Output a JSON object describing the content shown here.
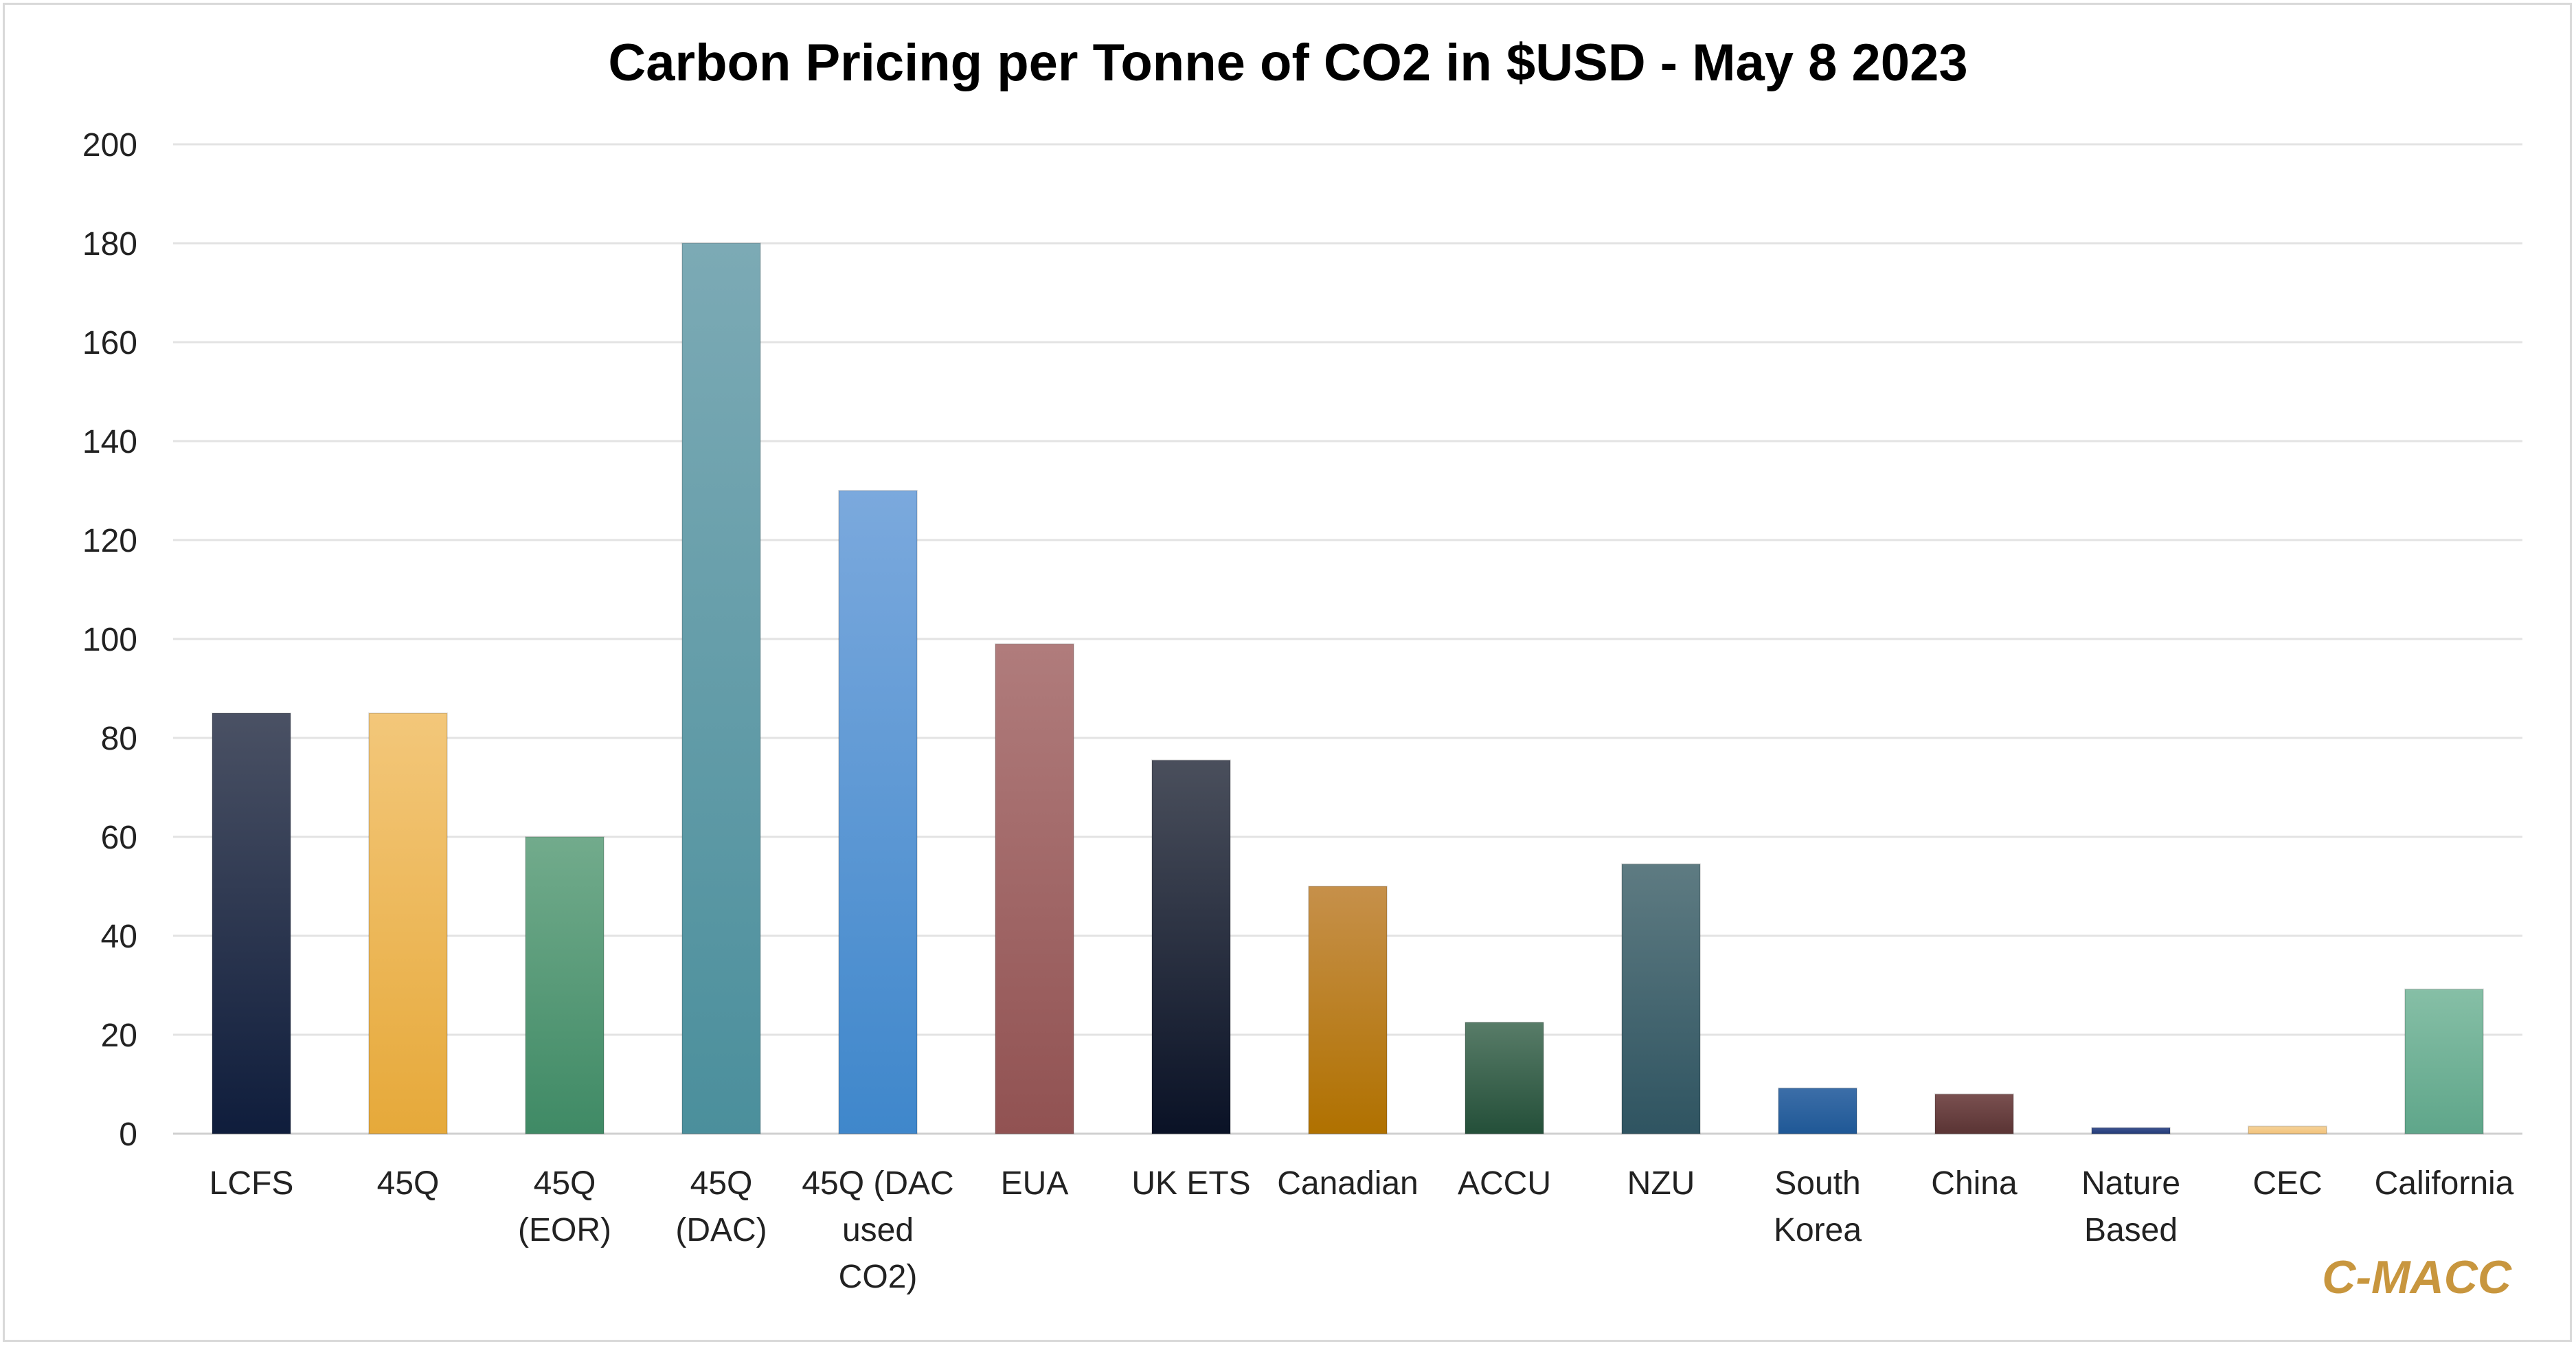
{
  "chart_data": {
    "type": "bar",
    "title": "Carbon Pricing per Tonne of CO2 in $USD - May 8 2023",
    "xlabel": "",
    "ylabel": "",
    "ylim": [
      0,
      200
    ],
    "yticks": [
      0,
      20,
      40,
      60,
      80,
      100,
      120,
      140,
      160,
      180,
      200
    ],
    "grid": true,
    "legend": "none",
    "categories": [
      [
        "LCFS"
      ],
      [
        "45Q"
      ],
      [
        "45Q",
        "(EOR)"
      ],
      [
        "45Q",
        "(DAC)"
      ],
      [
        "45Q (DAC",
        "used",
        "CO2)"
      ],
      [
        "EUA"
      ],
      [
        "UK ETS"
      ],
      [
        "Canadian"
      ],
      [
        "ACCU"
      ],
      [
        "NZU"
      ],
      [
        "South",
        "Korea"
      ],
      [
        "China"
      ],
      [
        "Nature",
        "Based"
      ],
      [
        "CEC"
      ],
      [
        "California"
      ]
    ],
    "values": [
      85,
      85,
      60,
      180,
      130,
      99,
      75.5,
      50,
      22.5,
      54.5,
      9.2,
      8,
      1.2,
      1.5,
      29.2
    ],
    "bar_colors": [
      [
        "#4a5164",
        "#0f1d3c"
      ],
      [
        "#f3c77a",
        "#e6a93a"
      ],
      [
        "#72ab8c",
        "#3f8a65"
      ],
      [
        "#7caab5",
        "#4b8f9c"
      ],
      [
        "#7ba9dd",
        "#3f87cb"
      ],
      [
        "#b07c7c",
        "#915252"
      ],
      [
        "#4a4f5c",
        "#0a1226"
      ],
      [
        "#c6904a",
        "#b07100"
      ],
      [
        "#587c68",
        "#244f39"
      ],
      [
        "#5e7b82",
        "#2f5461"
      ],
      [
        "#3c6ea8",
        "#1f5896"
      ],
      [
        "#7a5050",
        "#5a3434"
      ],
      [
        "#3e5490",
        "#223a78"
      ],
      [
        "#f6d39a",
        "#f2c27a"
      ],
      [
        "#86bfa6",
        "#5fa68a"
      ]
    ]
  },
  "watermark": "C-MACC"
}
